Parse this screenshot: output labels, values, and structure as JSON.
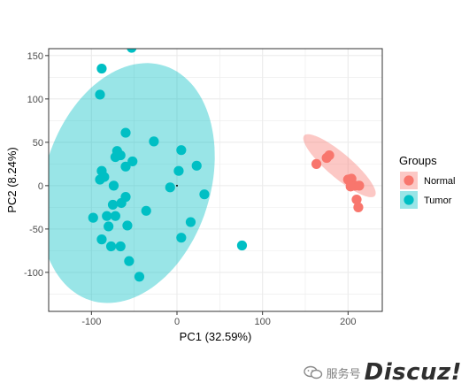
{
  "chart_data": {
    "type": "scatter",
    "xlabel": "PC1 (32.59%)",
    "ylabel": "PC2 (8.24%)",
    "xlim": [
      -150,
      240
    ],
    "ylim": [
      -145,
      158
    ],
    "xticks": [
      -100,
      0,
      100,
      200
    ],
    "yticks": [
      -100,
      -50,
      0,
      50,
      100,
      150
    ],
    "tick_labels_x": [
      "-100",
      "0",
      "100",
      "200"
    ],
    "tick_labels_y": [
      "-100",
      "-50",
      "0",
      "50",
      "100",
      "150"
    ],
    "grid": true,
    "legend": {
      "title": "Groups",
      "position": "right"
    },
    "series": [
      {
        "name": "Normal",
        "color": "#F8766D",
        "ellipse_fill": "#F8766D",
        "ellipse": {
          "cx": 190,
          "cy": 23,
          "rx": 54,
          "ry": 14,
          "angle_deg": -40
        },
        "points": [
          [
            163,
            25
          ],
          [
            175,
            32
          ],
          [
            178,
            35
          ],
          [
            200,
            7
          ],
          [
            204,
            8
          ],
          [
            208,
            0
          ],
          [
            213,
            0
          ],
          [
            210,
            -16
          ],
          [
            212,
            -25
          ],
          [
            203,
            -1
          ]
        ]
      },
      {
        "name": "Tumor",
        "color": "#00BFC4",
        "ellipse_fill": "#00BFC4",
        "ellipse": {
          "cx": -58,
          "cy": 3,
          "rx": 142,
          "ry": 97,
          "angle_deg": 72
        },
        "points": [
          [
            -53,
            159
          ],
          [
            -88,
            135
          ],
          [
            -90,
            105
          ],
          [
            -60,
            61
          ],
          [
            -27,
            51
          ],
          [
            -70,
            40
          ],
          [
            -72,
            33
          ],
          [
            -66,
            35
          ],
          [
            -52,
            28
          ],
          [
            -60,
            22
          ],
          [
            5,
            41
          ],
          [
            23,
            23
          ],
          [
            2,
            17
          ],
          [
            -88,
            17
          ],
          [
            -90,
            7
          ],
          [
            -85,
            10
          ],
          [
            -74,
            0
          ],
          [
            -60,
            -13
          ],
          [
            -75,
            -22
          ],
          [
            -65,
            -20
          ],
          [
            -98,
            -37
          ],
          [
            -82,
            -35
          ],
          [
            -72,
            -35
          ],
          [
            -80,
            -47
          ],
          [
            -58,
            -46
          ],
          [
            -36,
            -29
          ],
          [
            -8,
            -2
          ],
          [
            32,
            -10
          ],
          [
            16,
            -42
          ],
          [
            5,
            -60
          ],
          [
            -88,
            -62
          ],
          [
            -77,
            -70
          ],
          [
            -66,
            -70
          ],
          [
            -56,
            -87
          ],
          [
            -44,
            -105
          ],
          [
            76,
            -69
          ]
        ]
      }
    ]
  },
  "watermark": {
    "service_text": "服务号",
    "brand_text": "Discuz!"
  }
}
